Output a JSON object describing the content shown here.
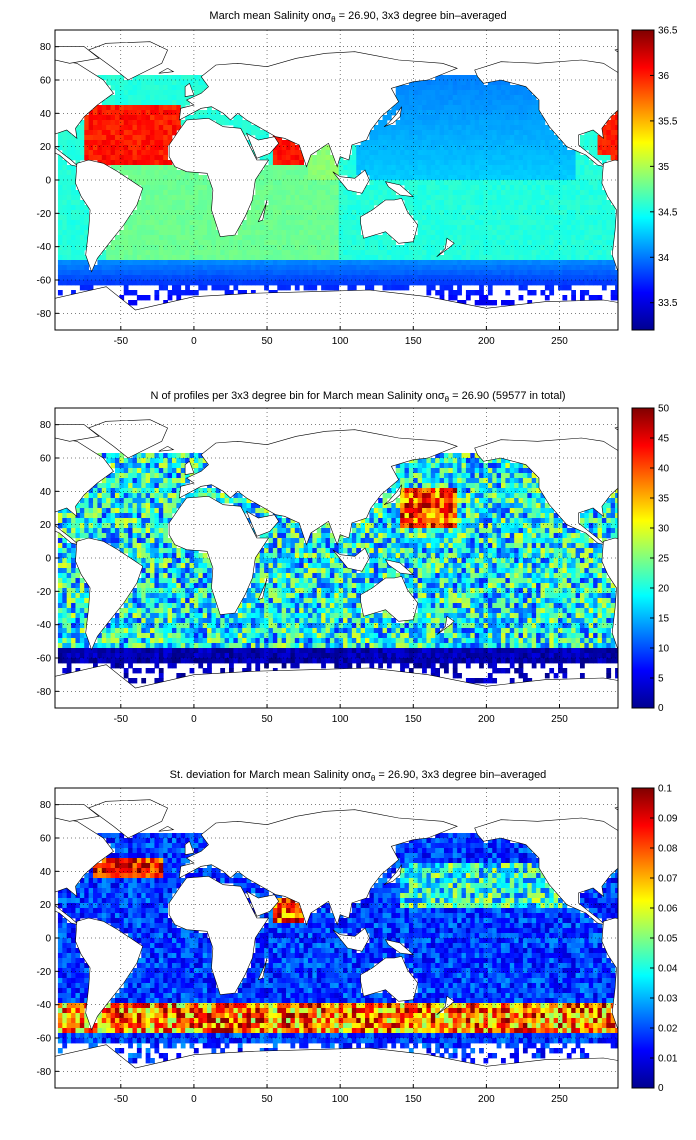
{
  "chart_data": [
    {
      "type": "heatmap",
      "title": "March mean Salinity on σθ = 26.90, 3x3 degree bin–averaged",
      "title_parts": {
        "pre": "March mean Salinity on",
        "sigma": "σ",
        "sub": "θ",
        "post": " = 26.90, 3x3 degree bin–averaged"
      },
      "xlim": [
        -95,
        290
      ],
      "ylim": [
        -90,
        90
      ],
      "x_ticks": [
        -50,
        0,
        50,
        100,
        150,
        200,
        250
      ],
      "y_ticks": [
        80,
        60,
        40,
        20,
        0,
        -20,
        -40,
        -60,
        -80
      ],
      "grid": true,
      "colorbar": {
        "min": 33.2,
        "max": 36.5,
        "ticks": [
          "36.5",
          "36",
          "35.5",
          "35",
          "34.5",
          "34",
          "33.5"
        ],
        "tick_values": [
          36.5,
          36,
          35.5,
          35,
          34.5,
          34,
          33.5
        ],
        "colormap": "jet"
      }
    },
    {
      "type": "heatmap",
      "title": "N of profiles per 3x3 degree bin for March mean Salinity on σθ = 26.90 (59577 in total)",
      "title_parts": {
        "pre": "N of profiles per 3x3 degree bin for March mean Salinity on",
        "sigma": "σ",
        "sub": "θ",
        "post": " = 26.90 (59577 in total)"
      },
      "xlim": [
        -95,
        290
      ],
      "ylim": [
        -90,
        90
      ],
      "x_ticks": [
        -50,
        0,
        50,
        100,
        150,
        200,
        250
      ],
      "y_ticks": [
        80,
        60,
        40,
        20,
        0,
        -20,
        -40,
        -60,
        -80
      ],
      "grid": true,
      "colorbar": {
        "min": 0,
        "max": 50,
        "ticks": [
          "50",
          "45",
          "40",
          "35",
          "30",
          "25",
          "20",
          "15",
          "10",
          "5",
          "0"
        ],
        "tick_values": [
          50,
          45,
          40,
          35,
          30,
          25,
          20,
          15,
          10,
          5,
          0
        ],
        "colormap": "jet"
      }
    },
    {
      "type": "heatmap",
      "title": "St. deviation for March mean Salinity on σθ = 26.90, 3x3 degree bin–averaged",
      "title_parts": {
        "pre": "St. deviation for March mean Salinity on",
        "sigma": "σ",
        "sub": "θ",
        "post": " = 26.90, 3x3 degree bin–averaged"
      },
      "xlim": [
        -95,
        290
      ],
      "ylim": [
        -90,
        90
      ],
      "x_ticks": [
        -50,
        0,
        50,
        100,
        150,
        200,
        250
      ],
      "y_ticks": [
        80,
        60,
        40,
        20,
        0,
        -20,
        -40,
        -60,
        -80
      ],
      "grid": true,
      "colorbar": {
        "min": 0,
        "max": 0.1,
        "ticks": [
          "0.1",
          "0.09",
          "0.08",
          "0.07",
          "0.06",
          "0.05",
          "0.04",
          "0.03",
          "0.02",
          "0.01",
          "0"
        ],
        "tick_values": [
          0.1,
          0.09,
          0.08,
          0.07,
          0.06,
          0.05,
          0.04,
          0.03,
          0.02,
          0.01,
          0
        ],
        "colormap": "jet"
      }
    }
  ]
}
